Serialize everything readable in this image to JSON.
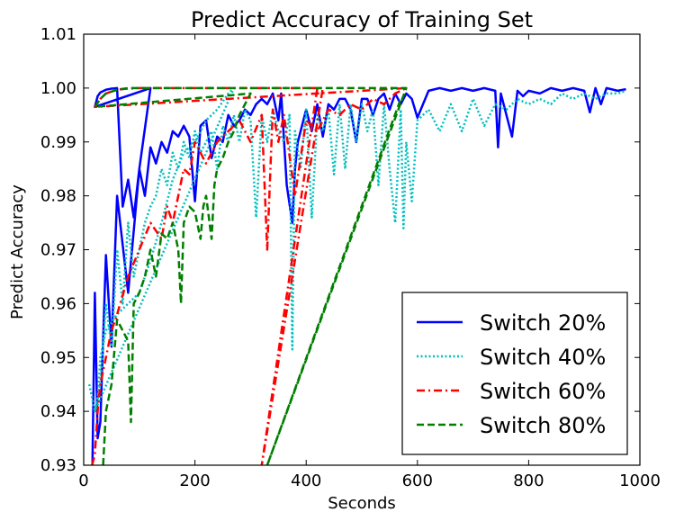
{
  "chart_data": {
    "type": "line",
    "title": "Predict Accuracy of Training Set",
    "xlabel": "Seconds",
    "ylabel": "Predict Accuracy",
    "xlim": [
      0,
      1000
    ],
    "ylim": [
      0.93,
      1.01
    ],
    "xticks": [
      0,
      200,
      400,
      600,
      800,
      1000
    ],
    "xtick_labels": [
      "0",
      "200",
      "400",
      "600",
      "800",
      "1000"
    ],
    "yticks": [
      0.93,
      0.94,
      0.95,
      0.96,
      0.97,
      0.98,
      0.99,
      1.0,
      1.01
    ],
    "ytick_labels": [
      "0.93",
      "0.94",
      "0.95",
      "0.96",
      "0.97",
      "0.98",
      "0.99",
      "1.00",
      "1.01"
    ],
    "grid": false,
    "legend_position": "bottom-right",
    "series": [
      {
        "name": "Switch 20%",
        "color": "#0000ff",
        "dash": "solid",
        "x": [
          15,
          20,
          25,
          30,
          40,
          50,
          60,
          80,
          100,
          120,
          20,
          25,
          30,
          40,
          50,
          60,
          70,
          80,
          90,
          100,
          110,
          120,
          130,
          140,
          150,
          160,
          170,
          180,
          190,
          200,
          210,
          220,
          230,
          240,
          250,
          260,
          270,
          280,
          290,
          300,
          310,
          320,
          330,
          340,
          350,
          355,
          365,
          375,
          380,
          385,
          400,
          410,
          420,
          430,
          440,
          450,
          460,
          470,
          480,
          490,
          500,
          510,
          520,
          530,
          540,
          550,
          560,
          570,
          580,
          590,
          600,
          620,
          640,
          660,
          680,
          700,
          720,
          740,
          745,
          750,
          760,
          770,
          780,
          790,
          800,
          820,
          840,
          860,
          880,
          900,
          910,
          920,
          930,
          940,
          960,
          975
        ],
        "y": [
          0.925,
          0.962,
          0.935,
          0.938,
          0.969,
          0.952,
          0.98,
          0.962,
          0.985,
          1.0,
          0.9965,
          0.9985,
          0.9992,
          0.9997,
          0.9999,
          1.0,
          0.978,
          0.983,
          0.976,
          0.985,
          0.98,
          0.989,
          0.986,
          0.99,
          0.988,
          0.992,
          0.991,
          0.993,
          0.991,
          0.979,
          0.993,
          0.994,
          0.987,
          0.991,
          0.99,
          0.995,
          0.993,
          0.994,
          0.996,
          0.995,
          0.997,
          0.998,
          0.997,
          0.999,
          0.994,
          0.999,
          0.982,
          0.975,
          0.985,
          0.99,
          0.996,
          0.992,
          0.997,
          0.991,
          0.997,
          0.996,
          0.998,
          0.998,
          0.996,
          0.99,
          0.998,
          0.998,
          0.995,
          0.998,
          0.999,
          0.996,
          0.999,
          0.997,
          0.999,
          0.998,
          0.9945,
          0.9995,
          1.0,
          0.9995,
          1.0,
          0.9995,
          1.0,
          0.9995,
          0.989,
          0.999,
          0.995,
          0.991,
          0.9995,
          0.9985,
          0.9995,
          0.999,
          1.0,
          0.9995,
          1.0,
          0.9995,
          0.9955,
          1.0,
          0.997,
          1.0,
          0.9995,
          0.9998
        ]
      },
      {
        "name": "Switch 40%",
        "color": "#00bfbf",
        "dash": "dotted",
        "x": [
          10,
          20,
          25,
          30,
          40,
          60,
          80,
          100,
          120,
          140,
          160,
          180,
          200,
          220,
          240,
          260,
          270,
          20,
          30,
          40,
          50,
          60,
          70,
          80,
          90,
          100,
          110,
          120,
          130,
          140,
          150,
          160,
          170,
          180,
          190,
          200,
          210,
          220,
          230,
          240,
          250,
          260,
          270,
          280,
          290,
          300,
          310,
          320,
          330,
          340,
          350,
          360,
          370,
          375,
          380,
          390,
          400,
          410,
          420,
          430,
          440,
          450,
          460,
          470,
          480,
          490,
          500,
          510,
          520,
          530,
          540,
          550,
          560,
          570,
          575,
          580,
          590,
          600,
          620,
          640,
          660,
          680,
          700,
          720,
          740,
          760,
          780,
          800,
          820,
          840,
          860,
          880,
          900,
          920,
          940,
          960,
          975
        ],
        "y": [
          0.945,
          0.94,
          0.942,
          0.95,
          0.955,
          0.958,
          0.96,
          0.962,
          0.968,
          0.975,
          0.983,
          0.988,
          0.99,
          0.994,
          0.996,
          0.999,
          1.0,
          0.94,
          0.945,
          0.96,
          0.952,
          0.97,
          0.96,
          0.975,
          0.965,
          0.97,
          0.975,
          0.978,
          0.98,
          0.985,
          0.982,
          0.988,
          0.985,
          0.99,
          0.987,
          0.992,
          0.988,
          0.99,
          0.992,
          0.985,
          0.993,
          0.99,
          0.995,
          0.99,
          0.996,
          0.994,
          0.976,
          0.995,
          0.99,
          0.996,
          0.992,
          0.99,
          0.995,
          0.9515,
          0.992,
          0.985,
          0.996,
          0.976,
          0.995,
          0.992,
          0.996,
          0.984,
          0.997,
          0.985,
          0.997,
          0.99,
          0.997,
          0.992,
          0.996,
          0.982,
          0.997,
          0.985,
          0.975,
          0.996,
          0.974,
          0.99,
          0.979,
          0.994,
          0.996,
          0.992,
          0.997,
          0.992,
          0.998,
          0.993,
          0.997,
          0.996,
          0.998,
          0.997,
          0.998,
          0.997,
          0.999,
          0.998,
          0.999,
          0.998,
          0.999,
          0.999,
          0.9995
        ]
      },
      {
        "name": "Switch 60%",
        "color": "#ff0000",
        "dash": "dashdot",
        "x": [
          15,
          20,
          25,
          30,
          40,
          50,
          60,
          80,
          100,
          120,
          140,
          150,
          160,
          170,
          180,
          190,
          200,
          220,
          240,
          260,
          280,
          300,
          320,
          330,
          340,
          350,
          360,
          380,
          400,
          420,
          440,
          460,
          480,
          500,
          520,
          540,
          560,
          580,
          20,
          30,
          40,
          60,
          80,
          100,
          120,
          140,
          160,
          180,
          200,
          220,
          240,
          260,
          280,
          300,
          320,
          340,
          360,
          380,
          400,
          420,
          430,
          320,
          420
        ],
        "y": [
          0.93,
          0.932,
          0.94,
          0.945,
          0.95,
          0.955,
          0.958,
          0.965,
          0.97,
          0.975,
          0.972,
          0.978,
          0.975,
          0.98,
          0.985,
          0.984,
          0.99,
          0.986,
          0.99,
          0.992,
          0.994,
          0.99,
          0.995,
          0.97,
          0.996,
          0.99,
          0.995,
          0.98,
          0.994,
          0.992,
          0.996,
          0.995,
          0.997,
          0.996,
          0.998,
          0.997,
          0.999,
          1.0,
          0.9965,
          0.998,
          0.999,
          0.9997,
          0.9999,
          1.0,
          1.0,
          1.0,
          1.0,
          1.0,
          1.0,
          1.0,
          1.0,
          1.0,
          1.0,
          1.0,
          1.0,
          1.0,
          1.0,
          1.0,
          1.0,
          1.0,
          1.0,
          0.93,
          1.0
        ]
      },
      {
        "name": "Switch 80%",
        "color": "#007f00",
        "dash": "dashed",
        "x": [
          35,
          40,
          50,
          60,
          70,
          80,
          85,
          90,
          100,
          110,
          120,
          130,
          140,
          150,
          160,
          170,
          175,
          180,
          190,
          200,
          210,
          215,
          220,
          230,
          235,
          240,
          250,
          260,
          270,
          280,
          290,
          300,
          20,
          30,
          40,
          60,
          80,
          100,
          150,
          200,
          300,
          400,
          500,
          580,
          330,
          570
        ],
        "y": [
          0.93,
          0.94,
          0.945,
          0.957,
          0.955,
          0.953,
          0.938,
          0.96,
          0.962,
          0.965,
          0.97,
          0.965,
          0.973,
          0.972,
          0.975,
          0.97,
          0.96,
          0.975,
          0.978,
          0.977,
          0.972,
          0.978,
          0.98,
          0.972,
          0.982,
          0.985,
          0.987,
          0.99,
          0.992,
          0.995,
          0.997,
          0.999,
          0.9965,
          0.998,
          0.999,
          0.9997,
          1.0,
          1.0,
          1.0,
          1.0,
          1.0,
          1.0,
          1.0,
          1.0,
          0.93,
          0.998
        ]
      }
    ]
  }
}
